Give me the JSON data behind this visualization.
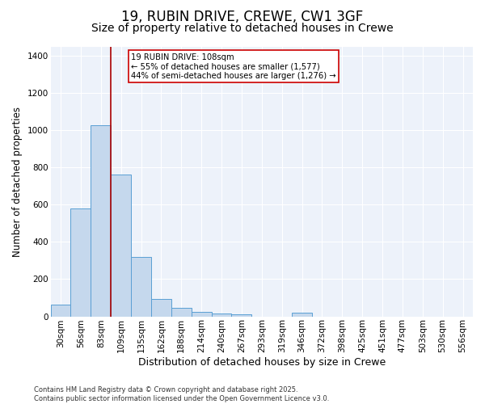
{
  "title_line1": "19, RUBIN DRIVE, CREWE, CW1 3GF",
  "title_line2": "Size of property relative to detached houses in Crewe",
  "xlabel": "Distribution of detached houses by size in Crewe",
  "ylabel": "Number of detached properties",
  "categories": [
    "30sqm",
    "56sqm",
    "83sqm",
    "109sqm",
    "135sqm",
    "162sqm",
    "188sqm",
    "214sqm",
    "240sqm",
    "267sqm",
    "293sqm",
    "319sqm",
    "346sqm",
    "372sqm",
    "398sqm",
    "425sqm",
    "451sqm",
    "477sqm",
    "503sqm",
    "530sqm",
    "556sqm"
  ],
  "values": [
    65,
    580,
    1025,
    760,
    320,
    95,
    45,
    25,
    15,
    10,
    0,
    0,
    18,
    0,
    0,
    0,
    0,
    0,
    0,
    0,
    0
  ],
  "bar_color": "#c5d8ed",
  "bar_edge_color": "#5a9fd4",
  "vline_x": 2.5,
  "vline_color": "#aa0000",
  "annotation_title": "19 RUBIN DRIVE: 108sqm",
  "annotation_line1": "← 55% of detached houses are smaller (1,577)",
  "annotation_line2": "44% of semi-detached houses are larger (1,276) →",
  "annotation_box_color": "#cc0000",
  "ylim": [
    0,
    1450
  ],
  "yticks": [
    0,
    200,
    400,
    600,
    800,
    1000,
    1200,
    1400
  ],
  "background_color": "#edf2fa",
  "grid_color": "#ffffff",
  "footer_line1": "Contains HM Land Registry data © Crown copyright and database right 2025.",
  "footer_line2": "Contains public sector information licensed under the Open Government Licence v3.0.",
  "title_fontsize": 12,
  "subtitle_fontsize": 10,
  "xlabel_fontsize": 9,
  "ylabel_fontsize": 8.5,
  "tick_fontsize": 7.5,
  "footer_fontsize": 6
}
